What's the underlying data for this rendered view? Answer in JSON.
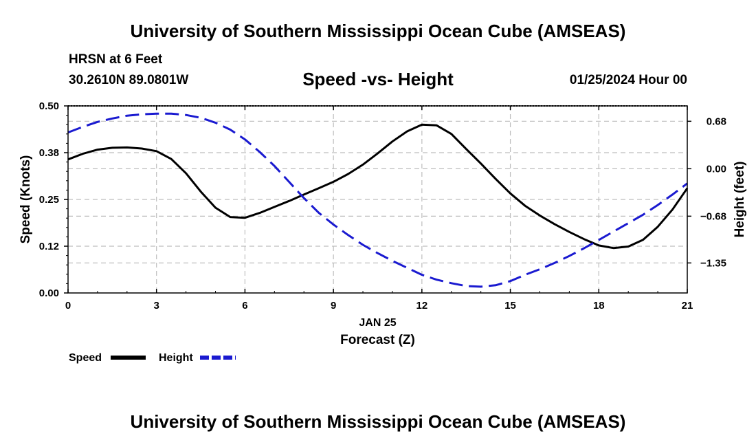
{
  "header": {
    "title": "University of Southern Mississippi Ocean Cube (AMSEAS)",
    "station": "HRSN at 6 Feet",
    "coords": "30.2610N  89.0801W",
    "chart_title": "Speed -vs- Height",
    "datetime": "01/25/2024 Hour 00"
  },
  "footer": {
    "title": "University of Southern Mississippi Ocean Cube (AMSEAS)"
  },
  "colors": {
    "speed": "#000000",
    "height": "#1a1ad0",
    "grid": "#bdbdbd"
  },
  "chart_data": {
    "type": "line",
    "title": "Speed -vs- Height",
    "xlabel": "Forecast (Z)",
    "xlabel_date": "JAN 25",
    "ylabel_left": "Speed (Knots)",
    "ylabel_right": "Height (feet)",
    "xlim": [
      0,
      21
    ],
    "ylim_left": [
      0,
      0.5
    ],
    "ylim_right": [
      -1.78,
      0.9
    ],
    "x_ticks": [
      0,
      3,
      6,
      9,
      12,
      15,
      18,
      21
    ],
    "x_tick_labels": [
      "0",
      "3",
      "6",
      "9",
      "12",
      "15",
      "18",
      "21"
    ],
    "y_left_ticks": [
      0.0,
      0.125,
      0.25,
      0.375,
      0.5
    ],
    "y_left_tick_labels": [
      "0.00",
      "0.12",
      "0.25",
      "0.38",
      "0.50"
    ],
    "y_right_ticks": [
      0.68,
      0.0,
      -0.68,
      -1.35
    ],
    "y_right_tick_labels": [
      "0.68",
      "0.00",
      "−0.68",
      "−1.35"
    ],
    "series": [
      {
        "name": "Speed",
        "axis": "left",
        "style": "solid",
        "x": [
          0,
          0.5,
          1,
          1.5,
          2,
          2.5,
          3,
          3.5,
          4,
          4.5,
          5,
          5.5,
          6,
          6.5,
          7,
          7.5,
          8,
          8.5,
          9,
          9.5,
          10,
          10.5,
          11,
          11.5,
          12,
          12.5,
          13,
          13.5,
          14,
          14.5,
          15,
          15.5,
          16,
          16.5,
          17,
          17.5,
          18,
          18.5,
          19,
          19.5,
          20,
          20.5,
          21
        ],
        "values": [
          0.357,
          0.372,
          0.383,
          0.388,
          0.389,
          0.386,
          0.379,
          0.358,
          0.32,
          0.271,
          0.228,
          0.203,
          0.201,
          0.214,
          0.23,
          0.246,
          0.263,
          0.28,
          0.297,
          0.318,
          0.343,
          0.373,
          0.405,
          0.432,
          0.45,
          0.448,
          0.425,
          0.385,
          0.346,
          0.305,
          0.266,
          0.233,
          0.207,
          0.184,
          0.163,
          0.144,
          0.127,
          0.12,
          0.124,
          0.142,
          0.177,
          0.223,
          0.28
        ]
      },
      {
        "name": "Height",
        "axis": "right",
        "style": "dashed",
        "x": [
          0,
          0.5,
          1,
          1.5,
          2,
          2.5,
          3,
          3.5,
          4,
          4.5,
          5,
          5.5,
          6,
          6.5,
          7,
          7.5,
          8,
          8.5,
          9,
          9.5,
          10,
          10.5,
          11,
          11.5,
          12,
          12.5,
          13,
          13.5,
          14,
          14.5,
          15,
          15.5,
          16,
          16.5,
          17,
          17.5,
          18,
          18.5,
          19,
          19.5,
          20,
          20.5,
          21
        ],
        "values": [
          0.52,
          0.6,
          0.67,
          0.72,
          0.76,
          0.78,
          0.79,
          0.79,
          0.77,
          0.73,
          0.66,
          0.56,
          0.42,
          0.24,
          0.04,
          -0.19,
          -0.42,
          -0.63,
          -0.8,
          -0.95,
          -1.09,
          -1.21,
          -1.32,
          -1.42,
          -1.52,
          -1.59,
          -1.64,
          -1.68,
          -1.69,
          -1.67,
          -1.61,
          -1.52,
          -1.44,
          -1.35,
          -1.25,
          -1.14,
          -1.02,
          -0.9,
          -0.78,
          -0.66,
          -0.52,
          -0.37,
          -0.21
        ]
      }
    ],
    "legend": {
      "position": "bottom-left",
      "items": [
        "Speed",
        "Height"
      ]
    },
    "grid": true
  }
}
